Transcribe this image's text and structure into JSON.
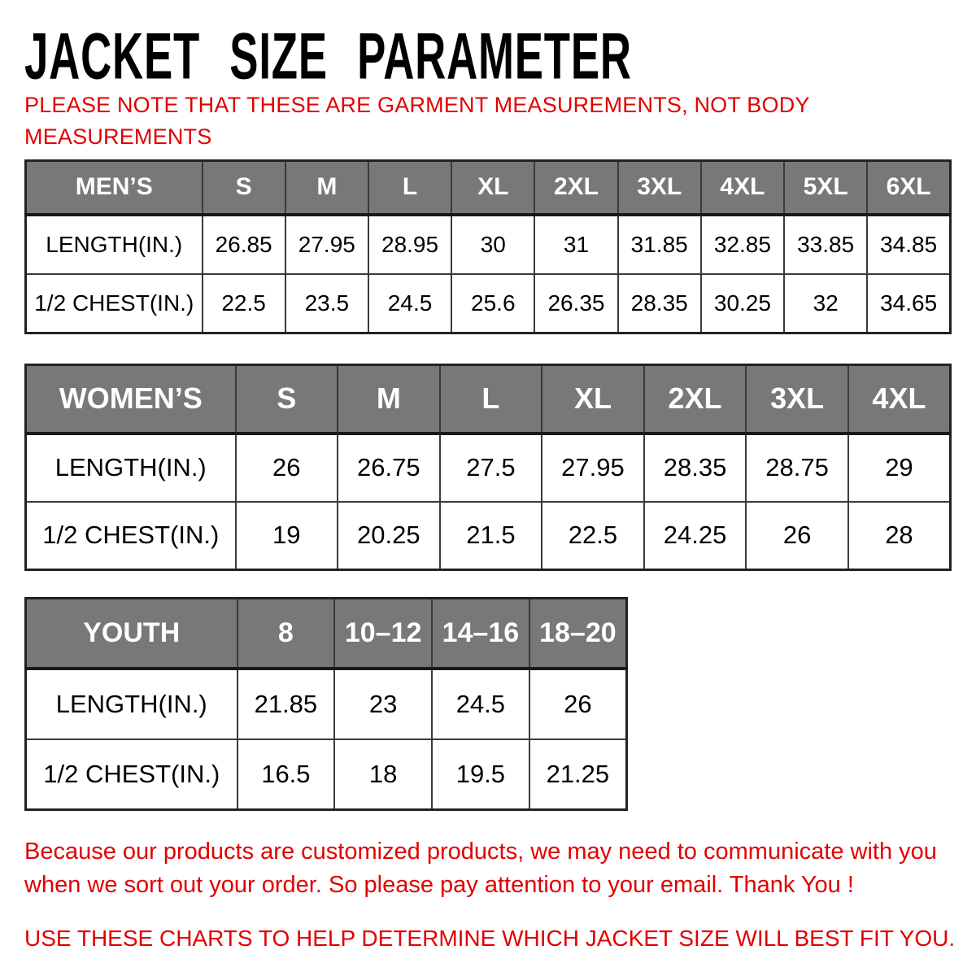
{
  "title": "JACKET SIZE PARAMETER",
  "note": {
    "lines": [
      "PLEASE NOTE THAT THESE ARE GARMENT MEASUREMENTS, NOT BODY",
      "MEASUREMENTS"
    ]
  },
  "colors": {
    "red": "#e10000",
    "header_gray": "#787878",
    "border": "#3a3a3a",
    "text": "#000000"
  },
  "tables": [
    {
      "id": "mens",
      "header": [
        "MEN’S",
        "S",
        "M",
        "L",
        "XL",
        "2XL",
        "3XL",
        "4XL",
        "5XL",
        "6XL"
      ],
      "rows": [
        [
          "LENGTH(IN.)",
          "26.85",
          "27.95",
          "28.95",
          "30",
          "31",
          "31.85",
          "32.85",
          "33.85",
          "34.85"
        ],
        [
          "1/2 CHEST(IN.)",
          "22.5",
          "23.5",
          "24.5",
          "25.6",
          "26.35",
          "28.35",
          "30.25",
          "32",
          "34.65"
        ]
      ]
    },
    {
      "id": "womens",
      "header": [
        "WOMEN’S",
        "S",
        "M",
        "L",
        "XL",
        "2XL",
        "3XL",
        "4XL"
      ],
      "rows": [
        [
          "LENGTH(IN.)",
          "26",
          "26.75",
          "27.5",
          "27.95",
          "28.35",
          "28.75",
          "29"
        ],
        [
          "1/2 CHEST(IN.)",
          "19",
          "20.25",
          "21.5",
          "22.5",
          "24.25",
          "26",
          "28"
        ]
      ]
    },
    {
      "id": "youth",
      "header": [
        "YOUTH",
        "8",
        "10–12",
        "14–16",
        "18–20"
      ],
      "rows": [
        [
          "LENGTH(IN.)",
          "21.85",
          "23",
          "24.5",
          "26"
        ],
        [
          "1/2 CHEST(IN.)",
          "16.5",
          "18",
          "19.5",
          "21.25"
        ]
      ]
    }
  ],
  "footer": {
    "lines": [
      "Because our products are customized products, we may need to communicate with you",
      "when we sort out your order. So please pay attention to your email. Thank You !"
    ],
    "caps_line": "USE THESE CHARTS TO HELP DETERMINE WHICH JACKET SIZE WILL BEST FIT YOU."
  }
}
